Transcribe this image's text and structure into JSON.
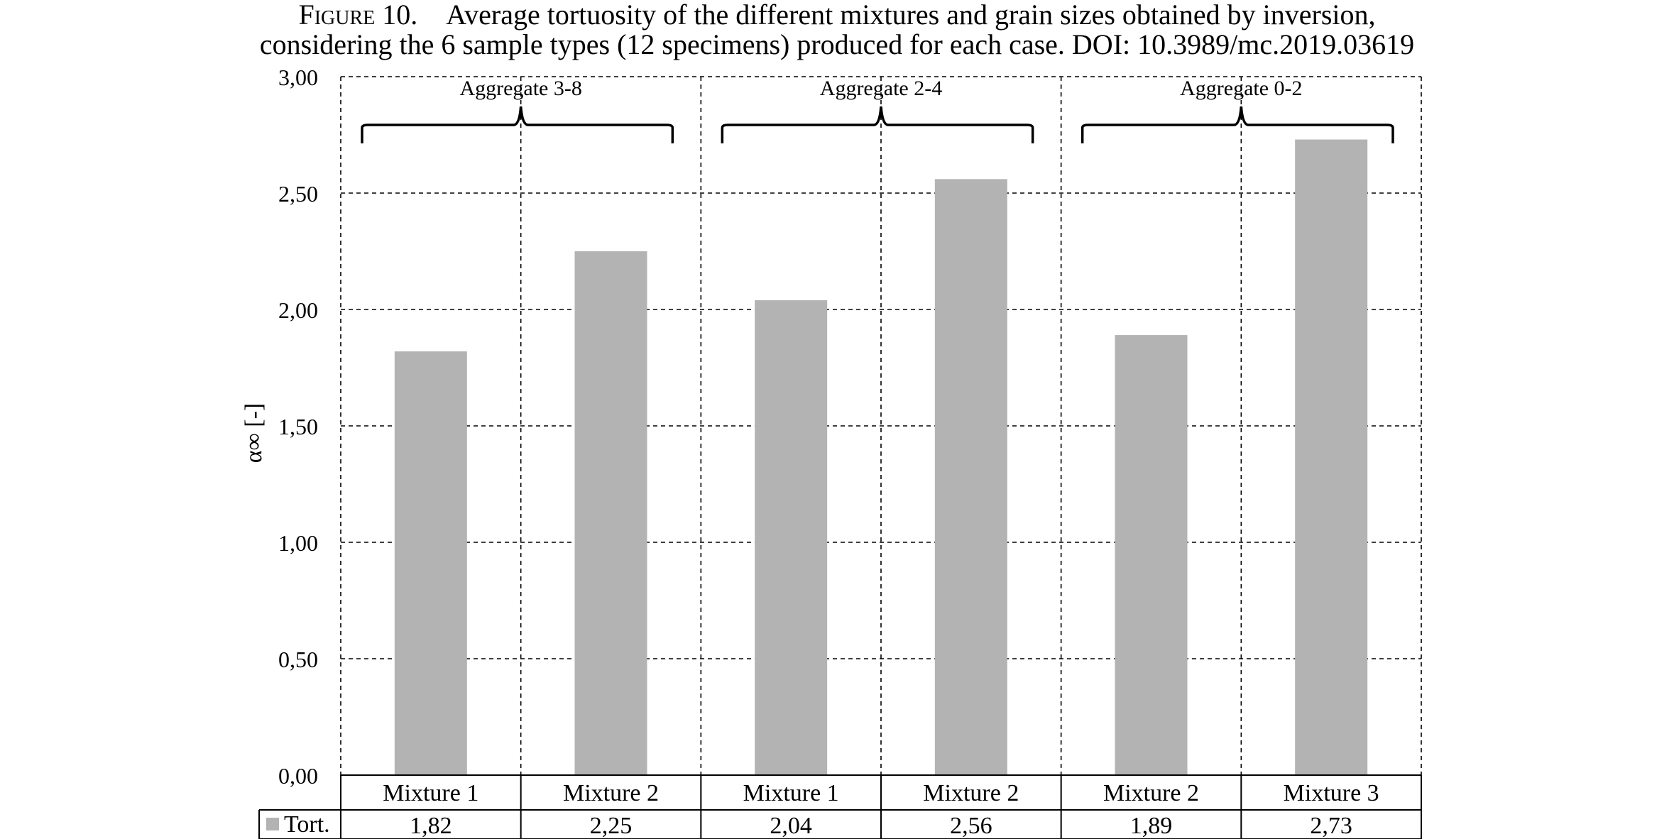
{
  "caption": {
    "label": "Figure 10.",
    "line1": "Average tortuosity of the different mixtures and grain sizes obtained by inversion,",
    "line2": "considering the 6 sample types (12 specimens) produced for each case.  DOI: 10.3989/mc.2019.03619"
  },
  "chart_data": {
    "type": "bar",
    "ylabel": "α∞ [-]",
    "ylim": [
      0,
      3
    ],
    "yticks": [
      0,
      0.5,
      1,
      1.5,
      2,
      2.5,
      3
    ],
    "ytick_labels": [
      "0,00",
      "0,50",
      "1,00",
      "1,50",
      "2,00",
      "2,50",
      "3,00"
    ],
    "grid": true,
    "groups": [
      {
        "label": "Aggregate 3-8",
        "categories": [
          "Mixture 1",
          "Mixture 2"
        ]
      },
      {
        "label": "Aggregate 2-4",
        "categories": [
          "Mixture 1",
          "Mixture 2"
        ]
      },
      {
        "label": "Aggregate 0-2",
        "categories": [
          "Mixture 2",
          "Mixture 3"
        ]
      }
    ],
    "categories": [
      "Mixture 1",
      "Mixture 2",
      "Mixture 1",
      "Mixture 2",
      "Mixture 2",
      "Mixture 3"
    ],
    "series": [
      {
        "name": "Tort.",
        "color": "#b3b3b3",
        "values": [
          1.82,
          2.25,
          2.04,
          2.56,
          1.89,
          2.73
        ],
        "value_labels": [
          "1,82",
          "2,25",
          "2,04",
          "2,56",
          "1,89",
          "2,73"
        ]
      }
    ]
  }
}
